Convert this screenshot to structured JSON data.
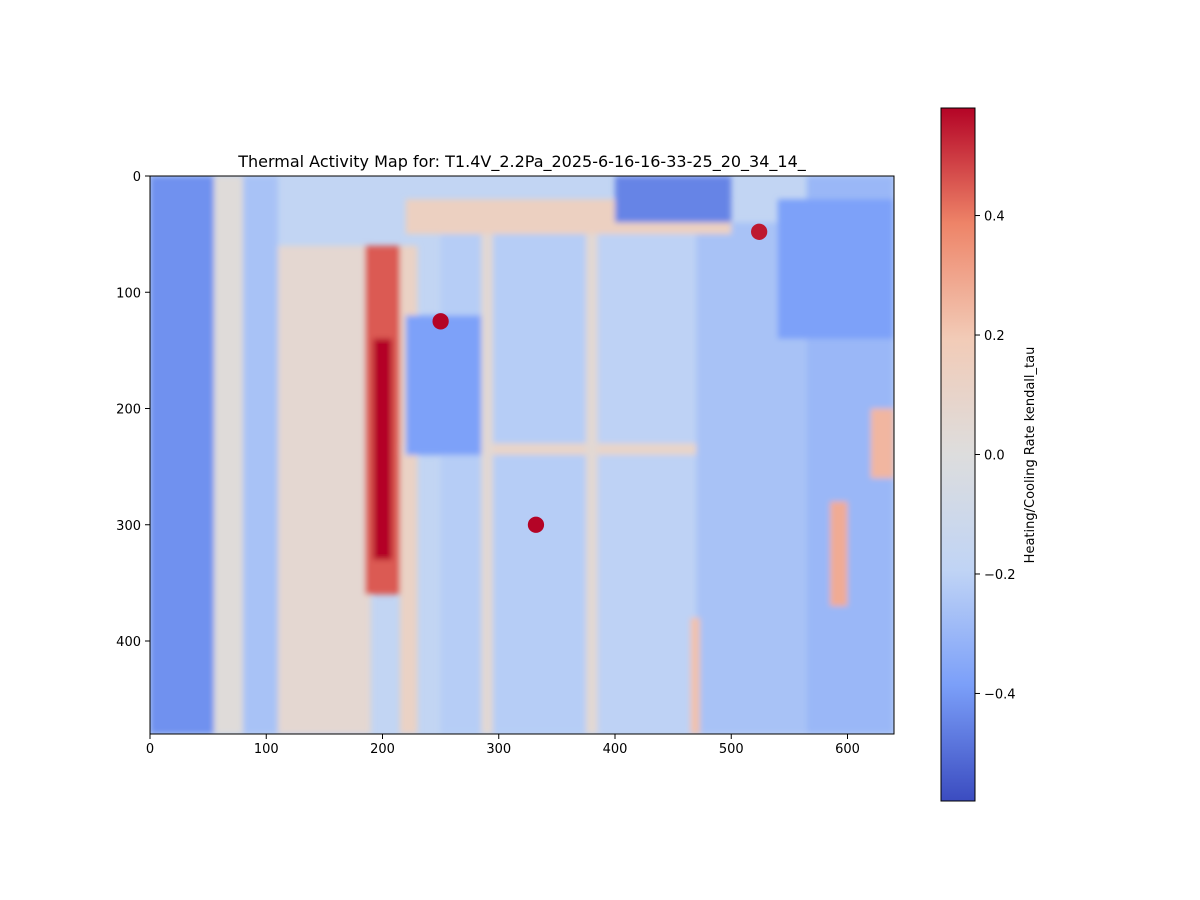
{
  "chart_data": {
    "type": "heatmap",
    "title": "Thermal Activity Map for: T1.4V_2.2Pa_2025-6-16-16-33-25_20_34_14_",
    "xlabel": "",
    "ylabel": "",
    "xlim": [
      0,
      640
    ],
    "ylim": [
      480,
      0
    ],
    "x_ticks": [
      0,
      100,
      200,
      300,
      400,
      500,
      600
    ],
    "y_ticks": [
      0,
      100,
      200,
      300,
      400
    ],
    "x_tick_labels": [
      "0",
      "100",
      "200",
      "300",
      "400",
      "500",
      "600"
    ],
    "y_tick_labels": [
      "0",
      "100",
      "200",
      "300",
      "400"
    ],
    "colormap": "coolwarm",
    "colormap_stops": [
      "#3b4cc0",
      "#7b9ff9",
      "#c0d4f5",
      "#dddddd",
      "#f2cbb7",
      "#ee8468",
      "#b40426"
    ],
    "value_range": [
      -0.58,
      0.58
    ],
    "colorbar": {
      "label": "Heating/Cooling Rate kendall_tau",
      "ticks": [
        0.4,
        0.2,
        0.0,
        -0.2,
        -0.4
      ],
      "tick_labels": [
        "0.4",
        "0.2",
        "0.0",
        "−0.2",
        "−0.4"
      ]
    },
    "background_value": -0.18,
    "features": [
      {
        "shape": "rect",
        "x0": 0,
        "x1": 60,
        "y0": 0,
        "y1": 480,
        "value": -0.42
      },
      {
        "shape": "rect",
        "x0": 55,
        "x1": 80,
        "y0": 0,
        "y1": 480,
        "value": 0.02
      },
      {
        "shape": "rect",
        "x0": 80,
        "x1": 110,
        "y0": 0,
        "y1": 480,
        "value": -0.26
      },
      {
        "shape": "rect",
        "x0": 110,
        "x1": 190,
        "y0": 60,
        "y1": 480,
        "value": 0.06
      },
      {
        "shape": "rect",
        "x0": 215,
        "x1": 230,
        "y0": 60,
        "y1": 480,
        "value": 0.12
      },
      {
        "shape": "rect",
        "x0": 250,
        "x1": 380,
        "y0": 40,
        "y1": 480,
        "value": -0.22
      },
      {
        "shape": "rect",
        "x0": 380,
        "x1": 470,
        "y0": 40,
        "y1": 480,
        "value": -0.2
      },
      {
        "shape": "rect",
        "x0": 470,
        "x1": 565,
        "y0": 40,
        "y1": 480,
        "value": -0.26
      },
      {
        "shape": "rect",
        "x0": 565,
        "x1": 640,
        "y0": 0,
        "y1": 480,
        "value": -0.3
      },
      {
        "shape": "rect",
        "x0": 220,
        "x1": 500,
        "y0": 20,
        "y1": 50,
        "value": 0.14
      },
      {
        "shape": "rect",
        "x0": 210,
        "x1": 470,
        "y0": 230,
        "y1": 240,
        "value": 0.1
      },
      {
        "shape": "rect",
        "x0": 285,
        "x1": 295,
        "y0": 50,
        "y1": 480,
        "value": 0.05
      },
      {
        "shape": "rect",
        "x0": 375,
        "x1": 385,
        "y0": 50,
        "y1": 480,
        "value": 0.05
      },
      {
        "shape": "rect",
        "x0": 465,
        "x1": 473,
        "y0": 380,
        "y1": 480,
        "value": 0.22
      },
      {
        "shape": "rect",
        "x0": 185,
        "x1": 215,
        "y0": 60,
        "y1": 360,
        "value": 0.45
      },
      {
        "shape": "rect",
        "x0": 192,
        "x1": 208,
        "y0": 140,
        "y1": 330,
        "value": 0.58
      },
      {
        "shape": "rect",
        "x0": 585,
        "x1": 600,
        "y0": 280,
        "y1": 370,
        "value": 0.28
      },
      {
        "shape": "rect",
        "x0": 620,
        "x1": 640,
        "y0": 200,
        "y1": 260,
        "value": 0.25
      },
      {
        "shape": "rect",
        "x0": 220,
        "x1": 285,
        "y0": 120,
        "y1": 240,
        "value": -0.38
      },
      {
        "shape": "rect",
        "x0": 400,
        "x1": 500,
        "y0": 0,
        "y1": 40,
        "value": -0.45
      },
      {
        "shape": "rect",
        "x0": 540,
        "x1": 640,
        "y0": 20,
        "y1": 140,
        "value": -0.38
      },
      {
        "shape": "spot",
        "x": 250,
        "y": 125,
        "r": 7,
        "value": 0.58
      },
      {
        "shape": "spot",
        "x": 332,
        "y": 300,
        "r": 7,
        "value": 0.58
      },
      {
        "shape": "spot",
        "x": 524,
        "y": 48,
        "r": 7,
        "value": 0.55
      }
    ]
  }
}
